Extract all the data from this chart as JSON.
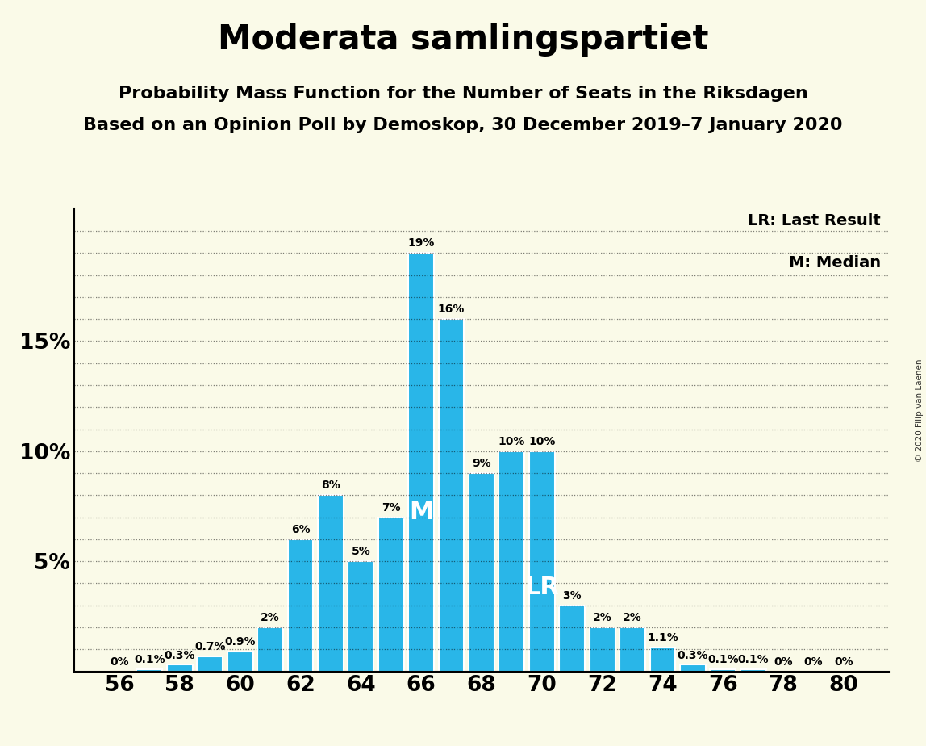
{
  "title": "Moderata samlingspartiet",
  "subtitle1": "Probability Mass Function for the Number of Seats in the Riksdagen",
  "subtitle2": "Based on an Opinion Poll by Demoskop, 30 December 2019–7 January 2020",
  "copyright": "© 2020 Filip van Laenen",
  "legend_lr": "LR: Last Result",
  "legend_m": "M: Median",
  "background_color": "#FAFAE8",
  "bar_color": "#29B6E8",
  "bar_edge_color": "#FFFFFF",
  "seats": [
    56,
    57,
    58,
    59,
    60,
    61,
    62,
    63,
    64,
    65,
    66,
    67,
    68,
    69,
    70,
    71,
    72,
    73,
    74,
    75,
    76,
    77,
    78,
    79,
    80
  ],
  "probabilities": [
    0.0,
    0.1,
    0.3,
    0.7,
    0.9,
    2.0,
    6.0,
    8.0,
    5.0,
    7.0,
    19.0,
    16.0,
    9.0,
    10.0,
    10.0,
    3.0,
    2.0,
    2.0,
    1.1,
    0.3,
    0.1,
    0.1,
    0.0,
    0.0,
    0.0
  ],
  "labels": [
    "0%",
    "0.1%",
    "0.3%",
    "0.7%",
    "0.9%",
    "2%",
    "6%",
    "8%",
    "5%",
    "7%",
    "19%",
    "16%",
    "9%",
    "10%",
    "10%",
    "3%",
    "2%",
    "2%",
    "1.1%",
    "0.3%",
    "0.1%",
    "0.1%",
    "0%",
    "0%",
    "0%"
  ],
  "median_seat": 66,
  "last_result_seat": 70,
  "ylim": [
    0,
    21
  ],
  "yticks": [
    5,
    10,
    15
  ],
  "ytick_labels": [
    "5%",
    "10%",
    "15%"
  ],
  "xtick_seats": [
    56,
    58,
    60,
    62,
    64,
    66,
    68,
    70,
    72,
    74,
    76,
    78,
    80
  ],
  "title_fontsize": 30,
  "subtitle_fontsize": 16,
  "bar_label_fontsize": 10,
  "axis_label_fontsize": 19,
  "legend_fontsize": 14,
  "annotation_fontsize": 22,
  "grid_lines": [
    1,
    2,
    3,
    4,
    5,
    6,
    7,
    8,
    9,
    10,
    11,
    12,
    13,
    14,
    15,
    16,
    17,
    18,
    19,
    20
  ]
}
